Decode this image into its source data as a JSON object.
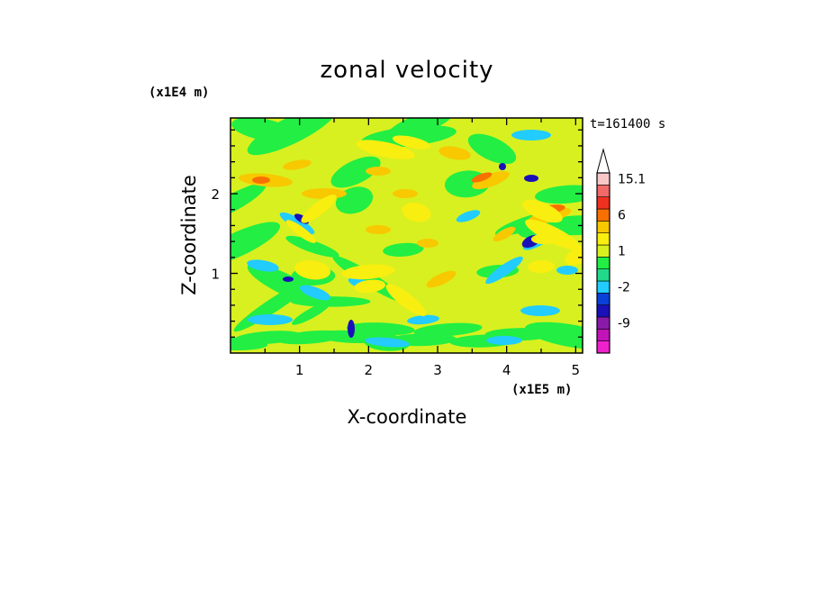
{
  "chart_data": {
    "type": "heatmap",
    "title": "zonal velocity",
    "xlabel": "X-coordinate",
    "ylabel": "Z-coordinate",
    "x_scale_label": "(x1E5 m)",
    "y_scale_label": "(x1E4 m)",
    "time_label": "t=161400 s",
    "xlim": [
      0,
      5.1
    ],
    "ylim": [
      0,
      2.95
    ],
    "x_ticks": [
      1,
      2,
      3,
      4,
      5
    ],
    "y_ticks": [
      1,
      2
    ],
    "colorbar": {
      "levels": [
        -15.1,
        -12,
        -9,
        -6,
        -4,
        -2,
        -1,
        0,
        1,
        2,
        4,
        6,
        9,
        12,
        15.1
      ],
      "tick_labels": [
        {
          "value": 15.1,
          "label": "15.1"
        },
        {
          "value": 6,
          "label": "6"
        },
        {
          "value": 1,
          "label": "1"
        },
        {
          "value": -2,
          "label": "-2"
        },
        {
          "value": -9,
          "label": "-9"
        }
      ],
      "colors": [
        "#ee22cc",
        "#c014b8",
        "#8a1aa8",
        "#1a10b8",
        "#0a40d8",
        "#22ccff",
        "#22d88a",
        "#22ee44",
        "#d8f020",
        "#f8ee10",
        "#f8c800",
        "#f87000",
        "#f03020",
        "#f06a6a",
        "#f8c8c8"
      ],
      "extend_top": true
    }
  }
}
